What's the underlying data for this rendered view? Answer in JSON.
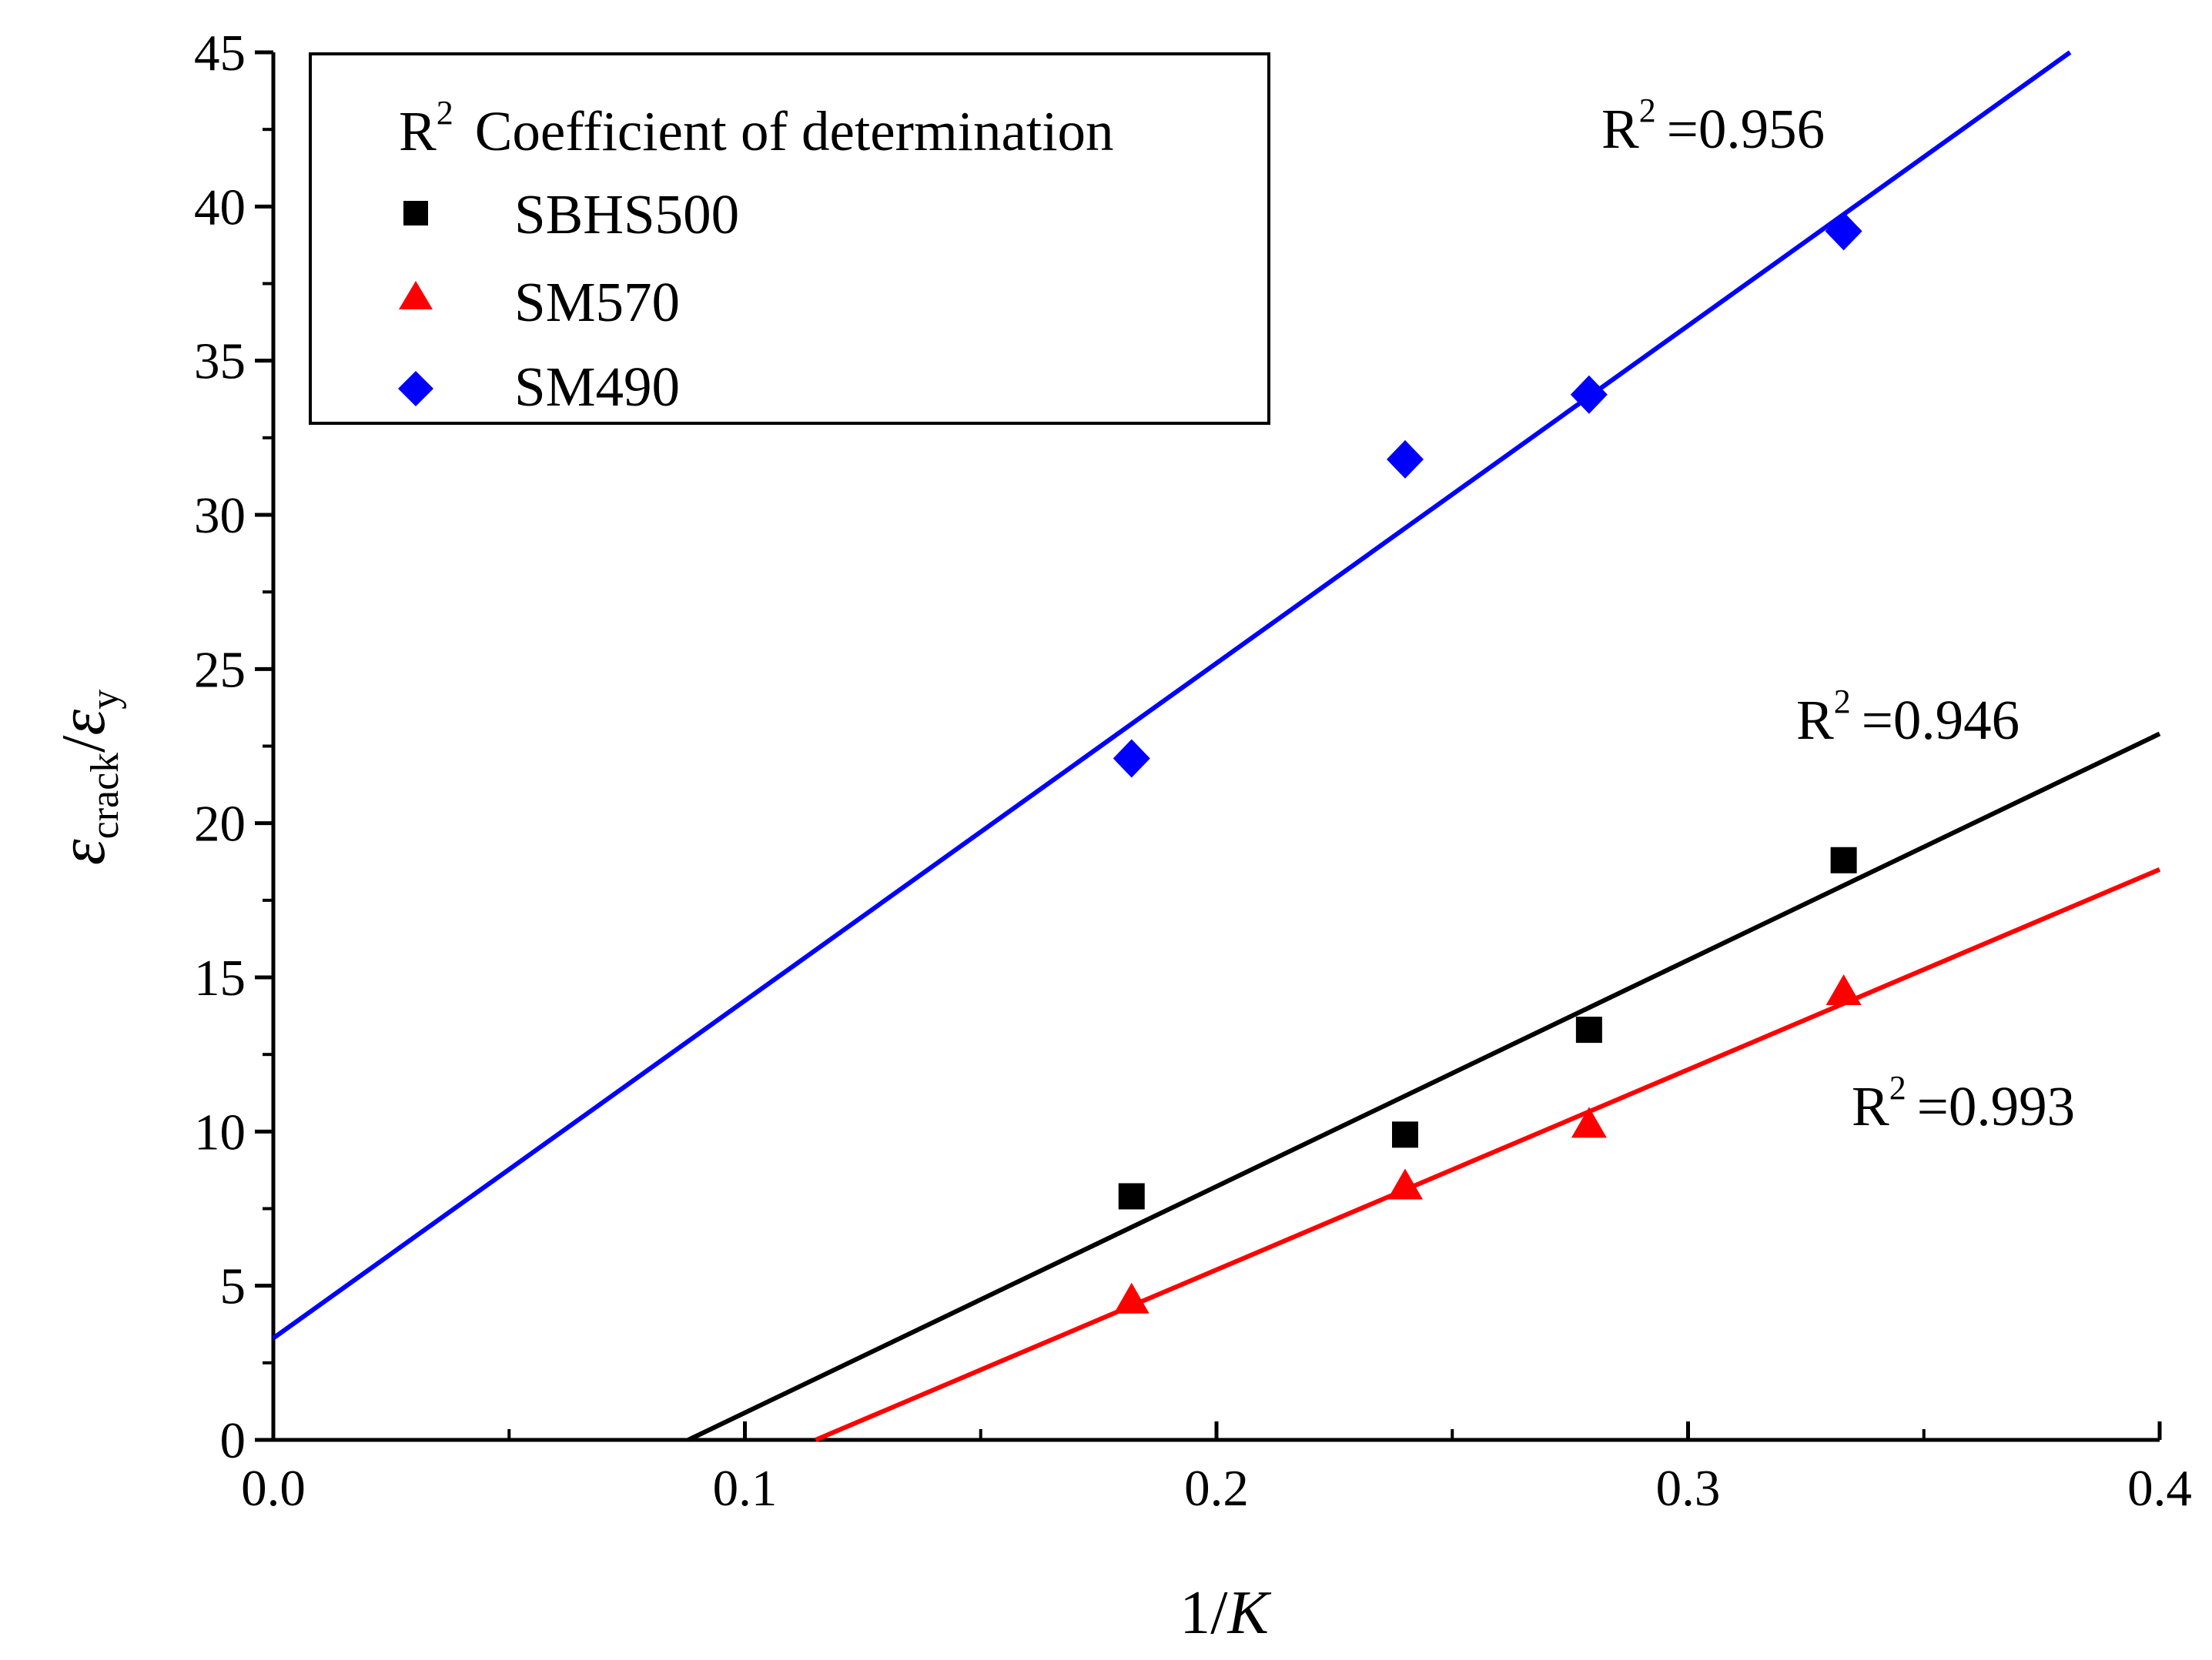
{
  "chart_data": {
    "type": "scatter",
    "title": "",
    "xlabel": "1/K",
    "ylabel": "ε_crack/ε_y",
    "ylabel_parts": {
      "main": "ε",
      "sub1": "crack",
      "sep": "/",
      "main2": "ε",
      "sub2": "y"
    },
    "xlabel_parts": {
      "num": "1/",
      "var": "K"
    },
    "xlim": [
      0.0,
      0.4
    ],
    "ylim": [
      0,
      45
    ],
    "xticks": [
      0.0,
      0.1,
      0.2,
      0.3,
      0.4
    ],
    "xtick_labels": [
      "0.0",
      "0.1",
      "0.2",
      "0.3",
      "0.4"
    ],
    "yticks": [
      0,
      5,
      10,
      15,
      20,
      25,
      30,
      35,
      40,
      45
    ],
    "ytick_labels": [
      "0",
      "5",
      "10",
      "15",
      "20",
      "25",
      "30",
      "35",
      "40",
      "45"
    ],
    "grid": false,
    "legend": {
      "position": "top-left",
      "header": {
        "r": "R",
        "sup": "2",
        "text": "Coefficient of determination"
      },
      "entries": [
        "SBHS500",
        "SM570",
        "SM490"
      ]
    },
    "series": [
      {
        "name": "SBHS500",
        "marker": "square",
        "color": "#000000",
        "x": [
          0.182,
          0.24,
          0.279,
          0.333
        ],
        "y": [
          7.9,
          9.9,
          13.3,
          18.8
        ],
        "fit": {
          "x": [
            0.088,
            0.4
          ],
          "y": [
            0,
            22.9
          ]
        },
        "r2_text": "=0.946"
      },
      {
        "name": "SM570",
        "marker": "triangle",
        "color": "#ff0000",
        "x": [
          0.182,
          0.24,
          0.279,
          0.333
        ],
        "y": [
          4.5,
          8.2,
          10.2,
          14.5
        ],
        "fit": {
          "x": [
            0.115,
            0.4
          ],
          "y": [
            0,
            18.5
          ]
        },
        "r2_text": "=0.993"
      },
      {
        "name": "SM490",
        "marker": "diamond",
        "color": "#0000ff",
        "x": [
          0.182,
          0.24,
          0.279,
          0.333
        ],
        "y": [
          22.1,
          31.8,
          33.9,
          39.2
        ],
        "fit": {
          "x": [
            0.0,
            0.381
          ],
          "y": [
            3.3,
            45
          ]
        },
        "r2_text": "=0.956"
      }
    ],
    "annotations": [
      {
        "series": "SM490",
        "r": "R",
        "sup": "2",
        "text": "=0.956"
      },
      {
        "series": "SBHS500",
        "r": "R",
        "sup": "2",
        "text": "=0.946"
      },
      {
        "series": "SM570",
        "r": "R",
        "sup": "2",
        "text": "=0.993"
      }
    ]
  }
}
